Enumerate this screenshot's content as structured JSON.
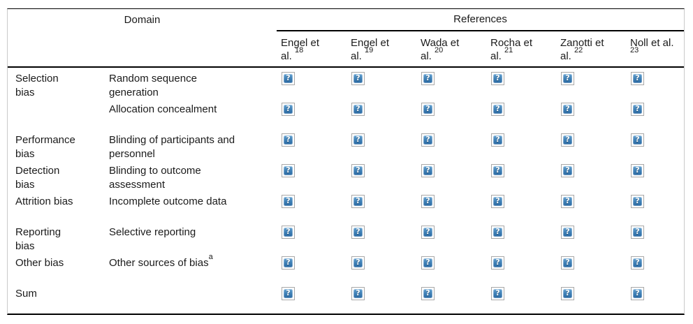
{
  "table": {
    "header": {
      "domain_label": "Domain",
      "references_label": "References",
      "ref_columns": [
        {
          "line1": "Engel et",
          "line2": "al. ",
          "sup": "18"
        },
        {
          "line1": "Engel et",
          "line2": "al. ",
          "sup": "19"
        },
        {
          "line1": "Wada et",
          "line2": "al. ",
          "sup": "20"
        },
        {
          "line1": "Rocha et",
          "line2": "al. ",
          "sup": "21"
        },
        {
          "line1": "Zanotti et",
          "line2": "al. ",
          "sup": "22"
        },
        {
          "line1": "Noll et al.",
          "line2": "",
          "sup": "23"
        }
      ]
    },
    "rows": [
      {
        "category": "Selection\nbias",
        "criterion": "Random sequence\ngeneration",
        "criterion_sup": ""
      },
      {
        "category": "",
        "criterion": "Allocation concealment",
        "criterion_sup": ""
      },
      {
        "category": "Performance\nbias",
        "criterion": "Blinding of participants and\npersonnel",
        "criterion_sup": ""
      },
      {
        "category": "Detection\nbias",
        "criterion": "Blinding to outcome\nassessment",
        "criterion_sup": ""
      },
      {
        "category": "Attrition bias",
        "criterion": "Incomplete outcome data",
        "criterion_sup": ""
      },
      {
        "category": "Reporting\nbias",
        "criterion": "Selective reporting",
        "criterion_sup": ""
      },
      {
        "category": "Other bias",
        "criterion": "Other sources of bias",
        "criterion_sup": "a"
      },
      {
        "category": "Sum",
        "criterion": "",
        "criterion_sup": ""
      }
    ],
    "icons_per_row": 6,
    "cell_icon": {
      "semantic": "broken-image-icon",
      "glyph": "?"
    },
    "colors": {
      "rule_line": "#000000",
      "side_border": "#c9c9c9",
      "icon_border": "#a8a8a8",
      "icon_blue_top": "#66a3d2",
      "icon_blue_bottom": "#2b6aa3",
      "text": "#1b1b1b"
    }
  }
}
